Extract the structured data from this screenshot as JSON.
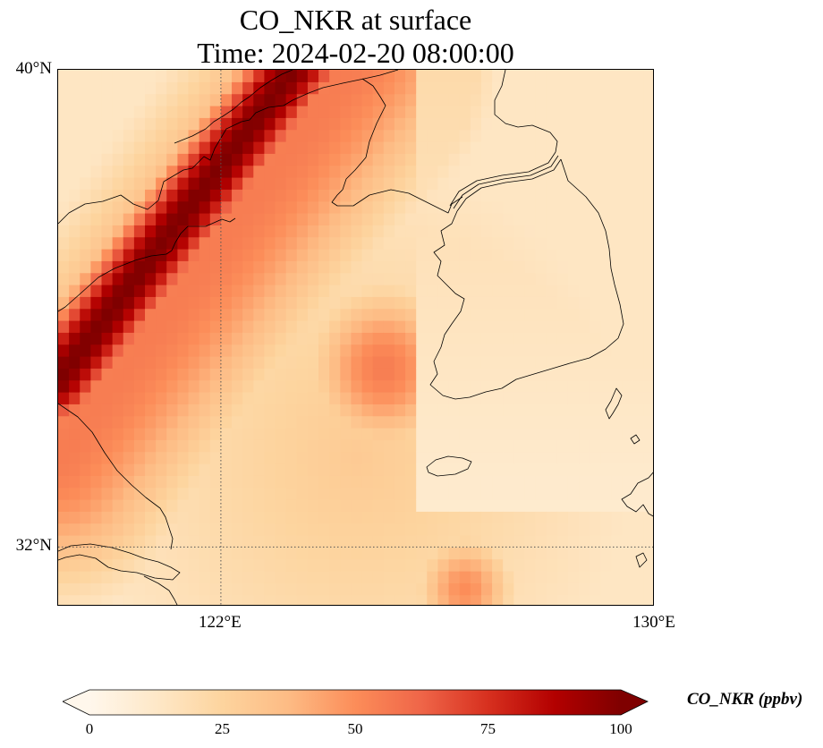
{
  "title": {
    "line1": "CO_NKR at surface",
    "line2": "Time: 2024-02-20 08:00:00"
  },
  "map": {
    "extent": {
      "lon_min": 119,
      "lon_max": 130,
      "lat_min": 31,
      "lat_max": 40
    },
    "lat_ticks": [
      {
        "value": 40,
        "label": "40°N"
      },
      {
        "value": 32,
        "label": "32°N"
      }
    ],
    "lon_ticks": [
      {
        "value": 122,
        "label": "122°E"
      },
      {
        "value": 130,
        "label": "130°E"
      }
    ],
    "gridlines": {
      "lat": 32,
      "lon": 122,
      "style": "dotted"
    },
    "coastlines": true,
    "field": {
      "variable": "CO_NKR",
      "units": "ppbv",
      "features": [
        {
          "kind": "plume",
          "desc": "high",
          "from": [
            123.5,
            40.2
          ],
          "to": [
            119.0,
            34.8
          ],
          "width_deg": 1.1,
          "peak": 100
        },
        {
          "kind": "plume",
          "desc": "elevated band",
          "from": [
            124.5,
            40.2
          ],
          "to": [
            119.0,
            33.5
          ],
          "width_deg": 3.2,
          "peak": 55
        },
        {
          "kind": "blob",
          "center": [
            125.0,
            35.0
          ],
          "radius_deg": 2.0,
          "peak": 55
        },
        {
          "kind": "blob",
          "center": [
            126.5,
            31.3
          ],
          "radius_deg": 1.3,
          "peak": 50
        }
      ]
    }
  },
  "colorbar": {
    "label": "CO_NKR (ppbv)",
    "min": 0,
    "max": 100,
    "extend": "both",
    "ticks": [
      {
        "value": 0,
        "label": "0"
      },
      {
        "value": 25,
        "label": "25"
      },
      {
        "value": 50,
        "label": "50"
      },
      {
        "value": 75,
        "label": "75"
      },
      {
        "value": 100,
        "label": "100"
      }
    ],
    "colormap": "OrRd",
    "stops": [
      "#fff7ec",
      "#fee8c8",
      "#fdd49e",
      "#fdbb84",
      "#fc8d59",
      "#ef6548",
      "#d7301f",
      "#b30000",
      "#7f0000"
    ]
  }
}
